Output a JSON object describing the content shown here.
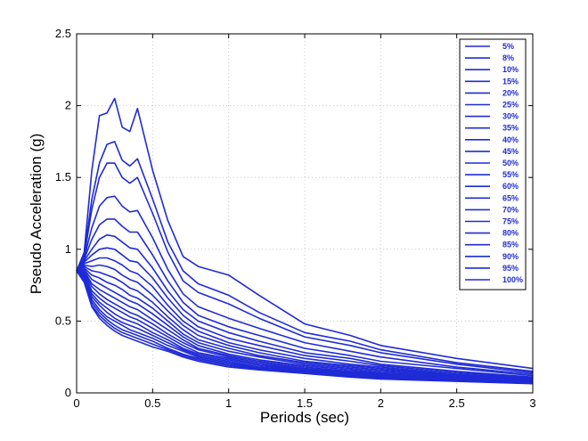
{
  "chart_data": {
    "type": "line",
    "xlabel": "Periods (sec)",
    "ylabel": "Pseudo Acceleration (g)",
    "xlim": [
      0,
      3
    ],
    "ylim": [
      0,
      2.5
    ],
    "xticks": [
      "0",
      "0.5",
      "1",
      "1.5",
      "2",
      "2.5",
      "3"
    ],
    "yticks": [
      "0",
      "0.5",
      "1",
      "1.5",
      "2",
      "2.5"
    ],
    "grid": true,
    "legend_position": "top-right",
    "line_color": "#1f2bd6",
    "x": [
      0,
      0.05,
      0.1,
      0.15,
      0.2,
      0.25,
      0.3,
      0.35,
      0.4,
      0.5,
      0.6,
      0.7,
      0.8,
      1.0,
      1.2,
      1.5,
      1.8,
      2.0,
      2.5,
      3.0
    ],
    "series": [
      {
        "name": "5%",
        "values": [
          0.85,
          0.98,
          1.55,
          1.93,
          1.95,
          2.05,
          1.85,
          1.82,
          1.98,
          1.55,
          1.2,
          0.95,
          0.88,
          0.82,
          0.68,
          0.48,
          0.4,
          0.33,
          0.24,
          0.17
        ]
      },
      {
        "name": "8%",
        "values": [
          0.85,
          0.96,
          1.35,
          1.6,
          1.73,
          1.75,
          1.62,
          1.58,
          1.63,
          1.35,
          1.05,
          0.85,
          0.76,
          0.68,
          0.56,
          0.42,
          0.36,
          0.3,
          0.21,
          0.15
        ]
      },
      {
        "name": "10%",
        "values": [
          0.85,
          0.95,
          1.28,
          1.5,
          1.6,
          1.6,
          1.5,
          1.46,
          1.5,
          1.25,
          0.98,
          0.78,
          0.7,
          0.62,
          0.52,
          0.39,
          0.33,
          0.28,
          0.2,
          0.14
        ]
      },
      {
        "name": "15%",
        "values": [
          0.85,
          0.94,
          1.15,
          1.3,
          1.36,
          1.37,
          1.3,
          1.26,
          1.27,
          1.08,
          0.86,
          0.69,
          0.6,
          0.52,
          0.45,
          0.35,
          0.29,
          0.25,
          0.18,
          0.13
        ]
      },
      {
        "name": "20%",
        "values": [
          0.85,
          0.93,
          1.07,
          1.17,
          1.21,
          1.21,
          1.16,
          1.12,
          1.12,
          0.96,
          0.78,
          0.63,
          0.54,
          0.46,
          0.4,
          0.31,
          0.26,
          0.22,
          0.17,
          0.12
        ]
      },
      {
        "name": "25%",
        "values": [
          0.85,
          0.92,
          1.0,
          1.07,
          1.1,
          1.09,
          1.05,
          1.01,
          1.0,
          0.87,
          0.71,
          0.58,
          0.5,
          0.42,
          0.36,
          0.28,
          0.24,
          0.2,
          0.15,
          0.11
        ]
      },
      {
        "name": "30%",
        "values": [
          0.85,
          0.91,
          0.96,
          1.0,
          1.01,
          1.0,
          0.96,
          0.92,
          0.91,
          0.8,
          0.66,
          0.54,
          0.46,
          0.38,
          0.33,
          0.26,
          0.22,
          0.19,
          0.14,
          0.105
        ]
      },
      {
        "name": "35%",
        "values": [
          0.85,
          0.9,
          0.92,
          0.94,
          0.94,
          0.92,
          0.89,
          0.85,
          0.83,
          0.74,
          0.61,
          0.5,
          0.43,
          0.35,
          0.3,
          0.24,
          0.2,
          0.18,
          0.13,
          0.1
        ]
      },
      {
        "name": "40%",
        "values": [
          0.85,
          0.89,
          0.88,
          0.89,
          0.88,
          0.86,
          0.82,
          0.79,
          0.77,
          0.68,
          0.57,
          0.47,
          0.4,
          0.33,
          0.28,
          0.22,
          0.19,
          0.17,
          0.125,
          0.095
        ]
      },
      {
        "name": "45%",
        "values": [
          0.85,
          0.88,
          0.85,
          0.84,
          0.82,
          0.8,
          0.77,
          0.73,
          0.71,
          0.63,
          0.53,
          0.44,
          0.37,
          0.31,
          0.26,
          0.21,
          0.18,
          0.16,
          0.12,
          0.09
        ]
      },
      {
        "name": "50%",
        "values": [
          0.85,
          0.87,
          0.82,
          0.8,
          0.77,
          0.75,
          0.72,
          0.68,
          0.66,
          0.59,
          0.5,
          0.41,
          0.35,
          0.29,
          0.25,
          0.2,
          0.17,
          0.15,
          0.115,
          0.088
        ]
      },
      {
        "name": "55%",
        "values": [
          0.85,
          0.86,
          0.79,
          0.76,
          0.73,
          0.7,
          0.67,
          0.64,
          0.62,
          0.55,
          0.47,
          0.39,
          0.33,
          0.27,
          0.23,
          0.19,
          0.16,
          0.14,
          0.11,
          0.085
        ]
      },
      {
        "name": "60%",
        "values": [
          0.85,
          0.85,
          0.76,
          0.72,
          0.69,
          0.66,
          0.63,
          0.6,
          0.58,
          0.51,
          0.44,
          0.37,
          0.31,
          0.26,
          0.22,
          0.18,
          0.15,
          0.135,
          0.105,
          0.082
        ]
      },
      {
        "name": "65%",
        "values": [
          0.85,
          0.84,
          0.74,
          0.69,
          0.65,
          0.62,
          0.59,
          0.56,
          0.54,
          0.48,
          0.41,
          0.35,
          0.3,
          0.25,
          0.21,
          0.17,
          0.145,
          0.13,
          0.1,
          0.079
        ]
      },
      {
        "name": "70%",
        "values": [
          0.85,
          0.83,
          0.71,
          0.66,
          0.62,
          0.59,
          0.56,
          0.53,
          0.51,
          0.45,
          0.39,
          0.33,
          0.28,
          0.24,
          0.2,
          0.165,
          0.14,
          0.125,
          0.097,
          0.076
        ]
      },
      {
        "name": "75%",
        "values": [
          0.85,
          0.82,
          0.69,
          0.63,
          0.59,
          0.55,
          0.52,
          0.5,
          0.48,
          0.42,
          0.37,
          0.31,
          0.27,
          0.23,
          0.19,
          0.16,
          0.135,
          0.12,
          0.094,
          0.074
        ]
      },
      {
        "name": "80%",
        "values": [
          0.85,
          0.81,
          0.67,
          0.61,
          0.56,
          0.52,
          0.49,
          0.47,
          0.45,
          0.4,
          0.35,
          0.3,
          0.26,
          0.22,
          0.18,
          0.155,
          0.13,
          0.115,
          0.091,
          0.072
        ]
      },
      {
        "name": "85%",
        "values": [
          0.85,
          0.8,
          0.65,
          0.58,
          0.53,
          0.5,
          0.47,
          0.44,
          0.42,
          0.38,
          0.33,
          0.29,
          0.25,
          0.21,
          0.175,
          0.15,
          0.125,
          0.11,
          0.088,
          0.07
        ]
      },
      {
        "name": "90%",
        "values": [
          0.85,
          0.79,
          0.63,
          0.56,
          0.51,
          0.47,
          0.44,
          0.42,
          0.4,
          0.36,
          0.31,
          0.27,
          0.24,
          0.2,
          0.17,
          0.145,
          0.12,
          0.105,
          0.085,
          0.068
        ]
      },
      {
        "name": "95%",
        "values": [
          0.85,
          0.78,
          0.61,
          0.54,
          0.49,
          0.45,
          0.42,
          0.4,
          0.38,
          0.34,
          0.3,
          0.26,
          0.23,
          0.19,
          0.165,
          0.14,
          0.115,
          0.1,
          0.082,
          0.066
        ]
      },
      {
        "name": "100%",
        "values": [
          0.85,
          0.77,
          0.6,
          0.52,
          0.47,
          0.43,
          0.4,
          0.38,
          0.36,
          0.32,
          0.29,
          0.25,
          0.22,
          0.18,
          0.16,
          0.135,
          0.11,
          0.097,
          0.08,
          0.064
        ]
      }
    ]
  }
}
